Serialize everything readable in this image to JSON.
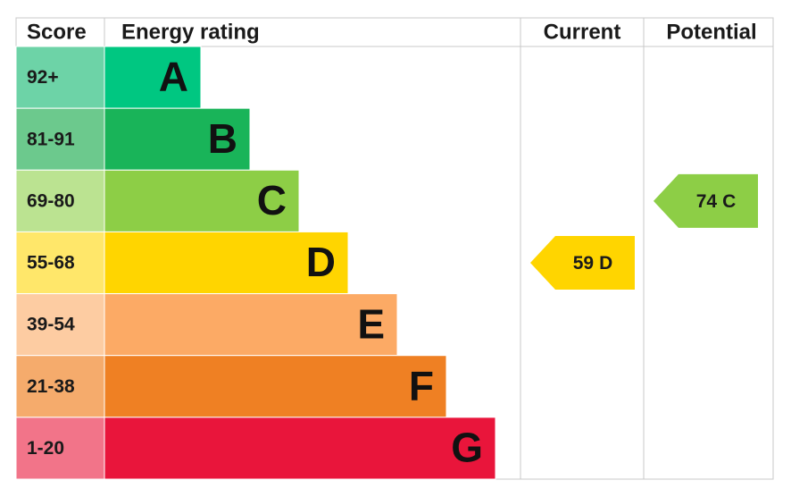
{
  "headers": {
    "score": "Score",
    "rating": "Energy rating",
    "current": "Current",
    "potential": "Potential"
  },
  "bands": [
    {
      "score": "92+",
      "letter": "A",
      "color": "#00c781",
      "light": "#6dd3a7"
    },
    {
      "score": "81-91",
      "letter": "B",
      "color": "#19b459",
      "light": "#6cc98d"
    },
    {
      "score": "69-80",
      "letter": "C",
      "color": "#8dce46",
      "light": "#bbe391"
    },
    {
      "score": "55-68",
      "letter": "D",
      "color": "#ffd500",
      "light": "#ffe76a"
    },
    {
      "score": "39-54",
      "letter": "E",
      "color": "#fcaa65",
      "light": "#fdcca2"
    },
    {
      "score": "21-38",
      "letter": "F",
      "color": "#ef8023",
      "light": "#f5ab6c"
    },
    {
      "score": "1-20",
      "letter": "G",
      "color": "#e9153b",
      "light": "#f27489"
    }
  ],
  "current": {
    "score": 59,
    "rating": "D"
  },
  "potential": {
    "score": 74,
    "rating": "C"
  }
}
